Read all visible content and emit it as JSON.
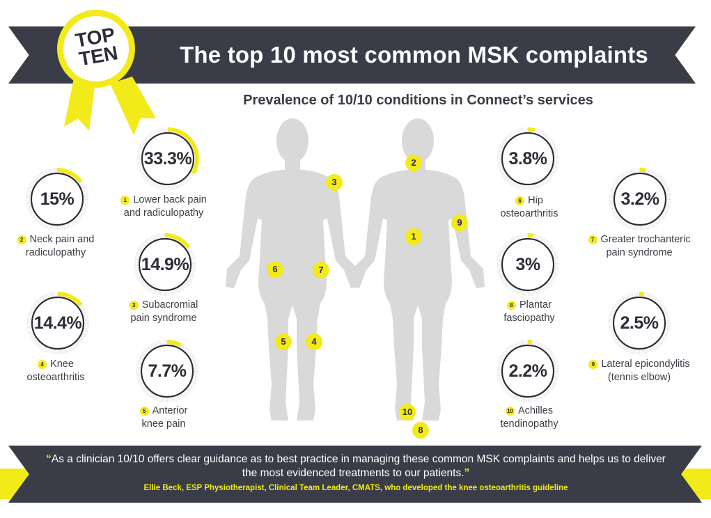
{
  "badge": {
    "line1": "TOP",
    "line2": "TEN"
  },
  "header": {
    "title": "The top 10 most common MSK complaints"
  },
  "subtitle": "Prevalence of 10/10 conditions in Connect’s services",
  "conditions": [
    {
      "number": "1",
      "value": "33.3%",
      "percent": 33.3,
      "label_line1": "Lower back pain",
      "label_line2": "and radiculopathy"
    },
    {
      "number": "2",
      "value": "15%",
      "percent": 15,
      "label_line1": "Neck pain and",
      "label_line2": "radiculopathy"
    },
    {
      "number": "3",
      "value": "14.9%",
      "percent": 14.9,
      "label_line1": "Subacromial",
      "label_line2": "pain syndrome"
    },
    {
      "number": "4",
      "value": "14.4%",
      "percent": 14.4,
      "label_line1": "Knee",
      "label_line2": "osteoarthritis"
    },
    {
      "number": "5",
      "value": "7.7%",
      "percent": 7.7,
      "label_line1": "Anterior",
      "label_line2": "knee pain"
    },
    {
      "number": "6",
      "value": "3.8%",
      "percent": 3.8,
      "label_line1": "Hip",
      "label_line2": "osteoarthritis"
    },
    {
      "number": "7",
      "value": "3.2%",
      "percent": 3.2,
      "label_line1": "Greater trochanteric",
      "label_line2": "pain syndrome"
    },
    {
      "number": "8",
      "value": "3%",
      "percent": 3,
      "label_line1": "Plantar",
      "label_line2": "fasciopathy"
    },
    {
      "number": "9",
      "value": "2.5%",
      "percent": 2.5,
      "label_line1": "Lateral epicondylitis",
      "label_line2": "(tennis elbow)"
    },
    {
      "number": "10",
      "value": "2.2%",
      "percent": 2.2,
      "label_line1": "Achilles",
      "label_line2": "tendinopathy"
    }
  ],
  "body_markers": {
    "front_3": "3",
    "front_6": "6",
    "front_7": "7",
    "front_5": "5",
    "front_4": "4",
    "back_2": "2",
    "back_9": "9",
    "back_1": "1",
    "back_10": "10",
    "back_8": "8"
  },
  "footer": {
    "quote_open": "“",
    "quote": "As a clinician 10/10 offers clear guidance as to best practice in managing these common MSK complaints and helps us to deliver the most evidenced treatments to our patients.",
    "quote_close": "”",
    "attribution": "Ellie Beck, ESP Physiotherapist, Clinical Team Leader, CMATS, who developed the knee osteoarthritis guideline"
  },
  "colors": {
    "accent": "#f3ea1a",
    "dark": "#3a3d47",
    "ring_track": "#e6e6e6",
    "body": "#d9d9d9"
  }
}
